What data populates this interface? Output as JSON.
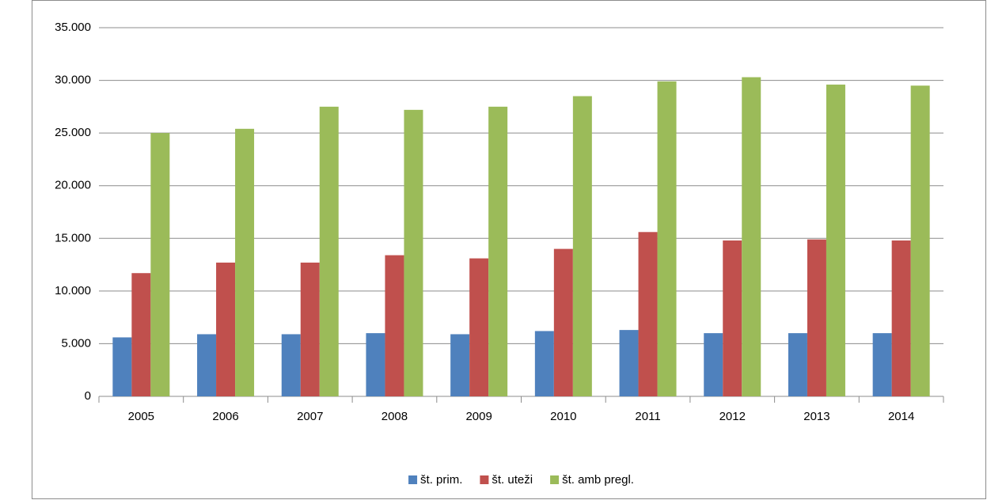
{
  "chart_data": {
    "type": "bar",
    "categories": [
      "2005",
      "2006",
      "2007",
      "2008",
      "2009",
      "2010",
      "2011",
      "2012",
      "2013",
      "2014"
    ],
    "series": [
      {
        "name": "št. prim.",
        "color": "#4f81bd",
        "values": [
          5600,
          5900,
          5900,
          6000,
          5900,
          6200,
          6300,
          6000,
          6000,
          6000
        ]
      },
      {
        "name": "št. uteži",
        "color": "#c0504d",
        "values": [
          11700,
          12700,
          12700,
          13400,
          13100,
          14000,
          15600,
          14800,
          14900,
          14800
        ]
      },
      {
        "name": "št. amb pregl.",
        "color": "#9bbb59",
        "values": [
          25000,
          25400,
          27500,
          27200,
          27500,
          28500,
          29900,
          30300,
          29600,
          29500
        ]
      }
    ],
    "ylim": [
      0,
      35000
    ],
    "yticks": [
      0,
      {
        "value": 5000,
        "label": "5.000"
      },
      {
        "value": 10000,
        "label": "10.000"
      },
      {
        "value": 15000,
        "label": "15.000"
      },
      {
        "value": 20000,
        "label": "20.000"
      },
      {
        "value": 25000,
        "label": "25.000"
      },
      {
        "value": 30000,
        "label": "30.000"
      },
      {
        "value": 35000,
        "label": "35.000"
      }
    ],
    "grid": true,
    "legend": "bottom"
  }
}
